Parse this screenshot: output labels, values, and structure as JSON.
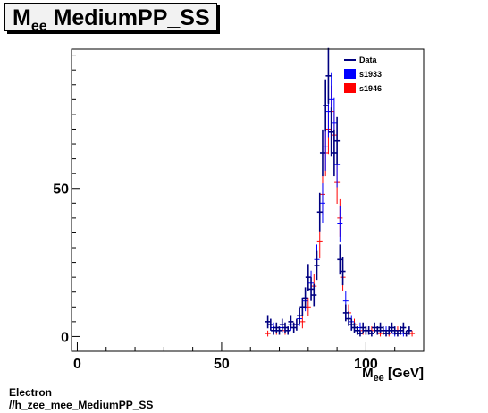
{
  "title_main": "M",
  "title_sub": "ee",
  "title_rest": " MediumPP_SS",
  "xaxis_main": "M",
  "xaxis_sub": "ee",
  "xaxis_rest": " [GeV]",
  "footer": {
    "line1": "Electron",
    "line2": "//h_zee_mee_MediumPP_SS"
  },
  "colors": {
    "data": "#000080",
    "s1933": "#0000ff",
    "s1946": "#ff0000"
  },
  "chart_data": {
    "type": "scatter",
    "xlim": [
      -2,
      120
    ],
    "ylim": [
      -5,
      97
    ],
    "xticks": [
      0,
      50,
      100
    ],
    "yticks": [
      0,
      50
    ],
    "legend_placement": "top-right",
    "series": [
      {
        "name": "Data",
        "x": [
          66,
          67,
          68,
          69,
          70,
          71,
          72,
          73,
          74,
          75,
          76,
          77,
          78,
          79,
          80,
          81,
          82,
          83,
          84,
          85,
          86,
          87,
          88,
          89,
          90,
          91,
          92,
          93,
          94,
          95,
          96,
          97,
          98,
          99,
          100,
          101,
          102,
          103,
          104,
          105,
          106,
          107,
          108,
          109,
          110,
          111,
          112,
          113,
          114,
          115
        ],
        "y": [
          5,
          4,
          2,
          3,
          2,
          4,
          3,
          2,
          5,
          3,
          4,
          7,
          10,
          13,
          20,
          16,
          14,
          24,
          42,
          62,
          78,
          88,
          69,
          62,
          66,
          26,
          22,
          8,
          6,
          4,
          3,
          2,
          1,
          3,
          2,
          2,
          1,
          3,
          2,
          3,
          2,
          1,
          2,
          3,
          2,
          1,
          2,
          3,
          1,
          2
        ]
      },
      {
        "name": "s1933",
        "x": [
          68,
          71,
          74,
          77,
          79,
          81,
          83,
          85,
          86,
          87,
          88,
          89,
          90,
          91,
          93,
          95,
          98,
          101,
          104,
          107,
          110,
          113
        ],
        "y": [
          3,
          3,
          4,
          6,
          12,
          18,
          26,
          45,
          64,
          76,
          80,
          72,
          58,
          38,
          12,
          5,
          3,
          2,
          2,
          2,
          1,
          1
        ]
      },
      {
        "name": "s1946",
        "x": [
          66,
          69,
          72,
          75,
          78,
          80,
          82,
          84,
          85,
          86,
          87,
          88,
          89,
          90,
          91,
          92,
          94,
          96,
          99,
          102,
          105,
          108,
          111,
          114,
          116
        ],
        "y": [
          1,
          2,
          2,
          3,
          5,
          10,
          17,
          32,
          48,
          62,
          70,
          76,
          68,
          52,
          40,
          20,
          8,
          4,
          2,
          2,
          1,
          1,
          2,
          1,
          1
        ]
      }
    ]
  }
}
